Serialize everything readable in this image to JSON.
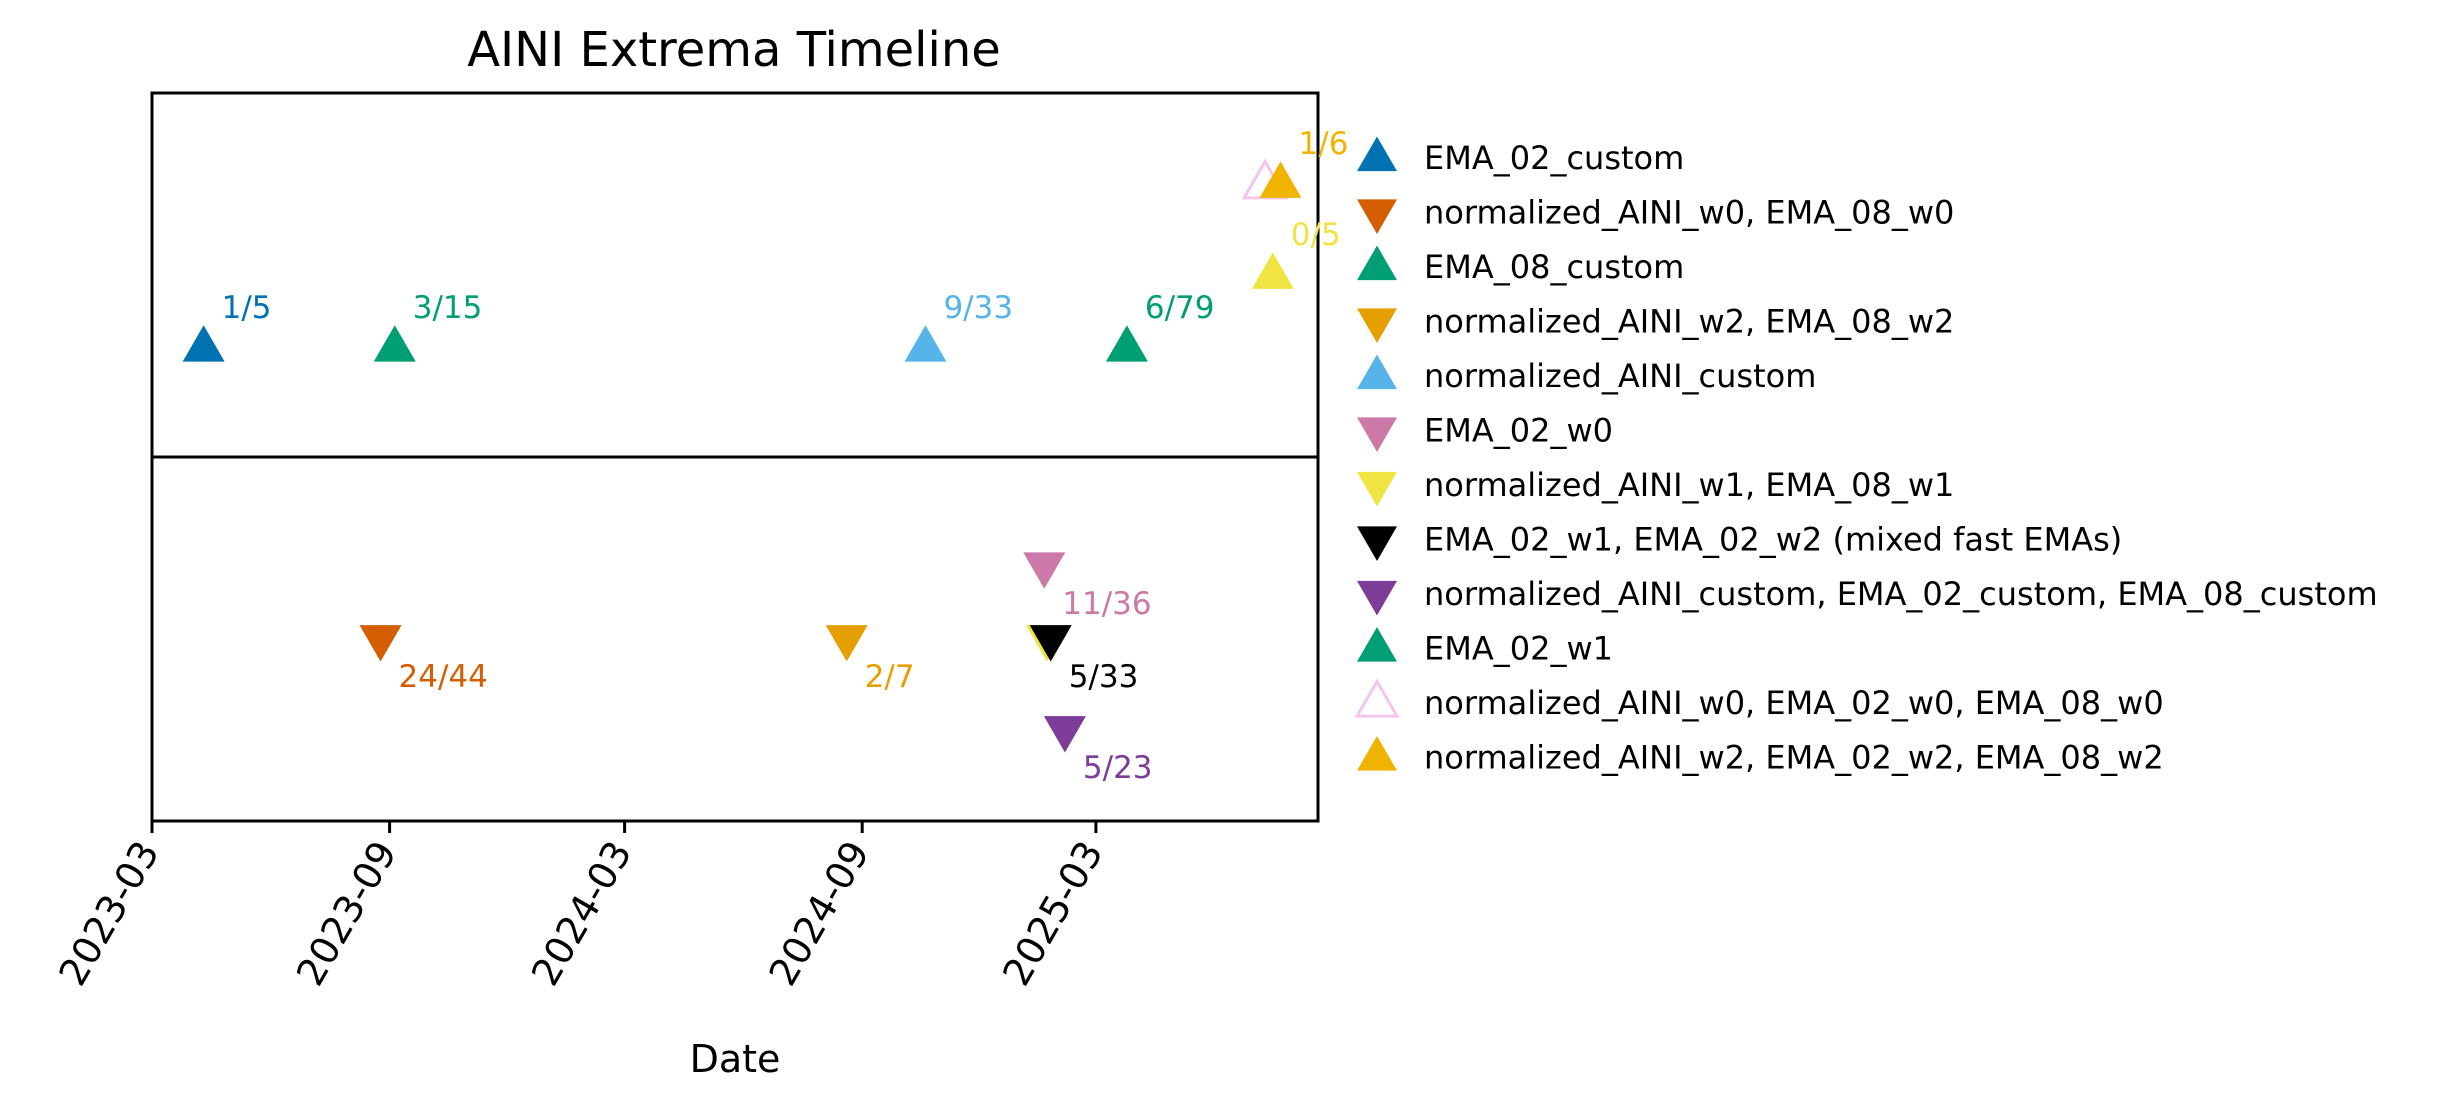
{
  "chart_data": {
    "type": "scatter",
    "title": "AINI Extrema Timeline",
    "xlabel": "Date",
    "ylabel": "",
    "x_ticks": [
      "2023-03",
      "2023-09",
      "2024-03",
      "2024-09",
      "2025-03"
    ],
    "x_range": [
      "2023-03-01",
      "2025-08-20"
    ],
    "grid": false,
    "legend_position": "outside right",
    "panels": [
      "maxima",
      "minima"
    ],
    "series": [
      {
        "name": "EMA_02_custom",
        "marker": "up",
        "color": "#0072b2",
        "filled": true,
        "points": [
          {
            "date": "2023-04-10",
            "panel": 0,
            "level": 0.3,
            "label": "1/5"
          }
        ]
      },
      {
        "name": "normalized_AINI_w0, EMA_08_w0",
        "marker": "down",
        "color": "#d55e00",
        "filled": true,
        "points": [
          {
            "date": "2023-08-25",
            "panel": 1,
            "level": 0.5,
            "label": "24/44"
          }
        ]
      },
      {
        "name": "EMA_08_custom",
        "marker": "up",
        "color": "#009e73",
        "filled": true,
        "points": [
          {
            "date": "2023-09-05",
            "panel": 0,
            "level": 0.3,
            "label": "3/15"
          }
        ]
      },
      {
        "name": "normalized_AINI_w2, EMA_08_w2",
        "marker": "down",
        "color": "#e69f00",
        "filled": true,
        "points": [
          {
            "date": "2024-08-20",
            "panel": 1,
            "level": 0.5,
            "label": "2/7"
          }
        ]
      },
      {
        "name": "normalized_AINI_custom",
        "marker": "up",
        "color": "#56b4e9",
        "filled": true,
        "points": [
          {
            "date": "2024-10-20",
            "panel": 0,
            "level": 0.3,
            "label": "9/33"
          }
        ]
      },
      {
        "name": "EMA_02_w0",
        "marker": "down",
        "color": "#cc79a7",
        "filled": true,
        "points": [
          {
            "date": "2025-01-20",
            "panel": 1,
            "level": 0.7,
            "label": "11/36"
          }
        ]
      },
      {
        "name": "normalized_AINI_w1, EMA_08_w1",
        "marker": "down",
        "color": "#f0e442",
        "filled": true,
        "points": [
          {
            "date": "2025-01-22",
            "panel": 1,
            "level": 0.5,
            "label": ""
          }
        ]
      },
      {
        "name": "EMA_02_w1, EMA_02_w2 (mixed fast EMAs)",
        "marker": "down",
        "color": "#000000",
        "filled": true,
        "points": [
          {
            "date": "2025-01-25",
            "panel": 1,
            "level": 0.5,
            "label": "5/33"
          }
        ]
      },
      {
        "name": "normalized_AINI_custom, EMA_02_custom, EMA_08_custom",
        "marker": "down",
        "color": "#7d3c98",
        "filled": true,
        "points": [
          {
            "date": "2025-02-05",
            "panel": 1,
            "level": 0.25,
            "label": "5/23"
          }
        ]
      },
      {
        "name": "EMA_02_w1",
        "marker": "up",
        "color": "#009e73",
        "filled": true,
        "points": [
          {
            "date": "2025-03-25",
            "panel": 0,
            "level": 0.3,
            "label": "6/79"
          }
        ]
      },
      {
        "name": "normalized_AINI_w0, EMA_02_w0, EMA_08_w0",
        "marker": "up",
        "color": "#f5c6ec",
        "filled": false,
        "points": [
          {
            "date": "2025-07-10",
            "panel": 0,
            "level": 0.75,
            "label": ""
          }
        ]
      },
      {
        "name": "normalized_AINI_w2, EMA_02_w2, EMA_08_w2",
        "marker": "up",
        "color": "#f0b400",
        "filled": true,
        "points": [
          {
            "date": "2025-07-22",
            "panel": 0,
            "level": 0.75,
            "label": "1/6"
          }
        ]
      },
      {
        "name": "",
        "marker": "up",
        "color": "#f0e442",
        "filled": true,
        "in_legend": false,
        "points": [
          {
            "date": "2025-07-16",
            "panel": 0,
            "level": 0.5,
            "label": "0/5"
          }
        ]
      }
    ]
  }
}
